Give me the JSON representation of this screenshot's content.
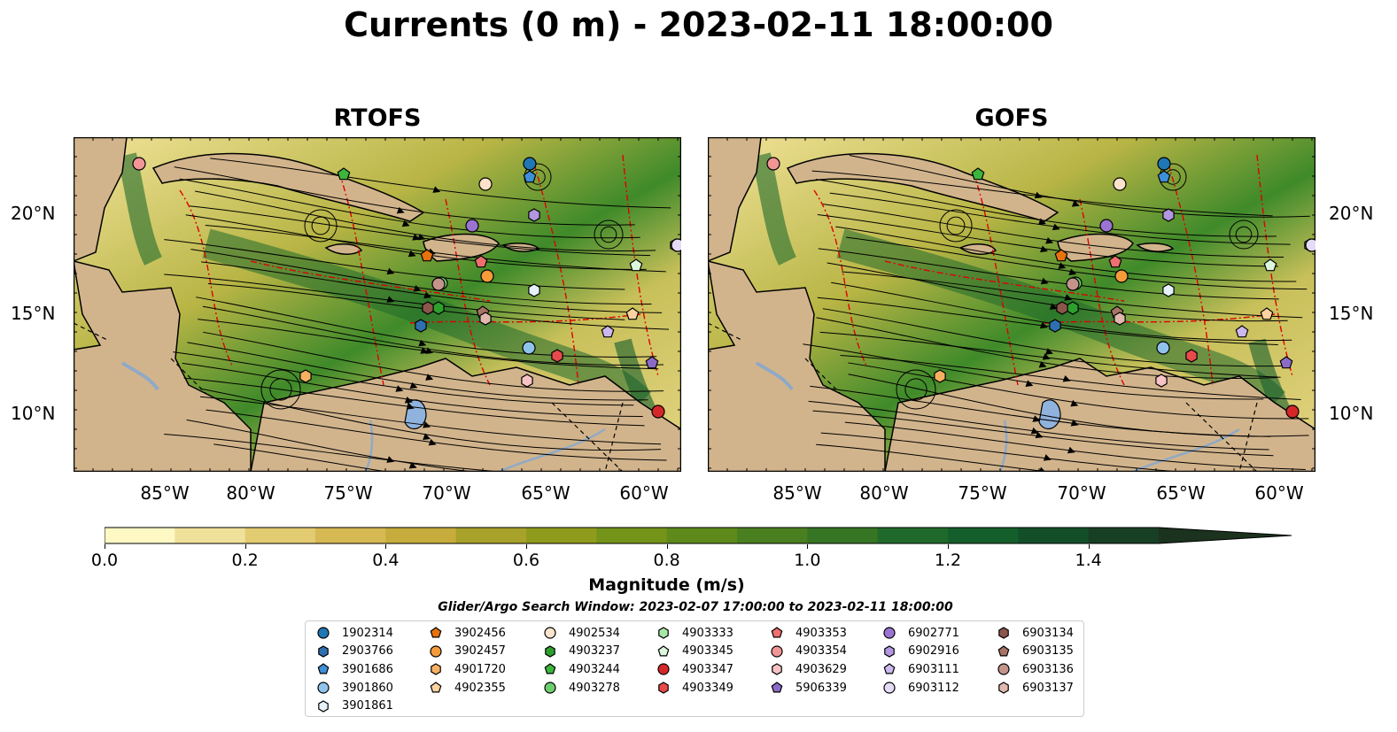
{
  "title": "Currents (0 m) - 2023-02-11 18:00:00",
  "panels": [
    {
      "title": "RTOFS"
    },
    {
      "title": "GOFS"
    }
  ],
  "lat_labels": [
    "20°N",
    "15°N",
    "10°N"
  ],
  "lon_labels": [
    "85°W",
    "80°W",
    "75°W",
    "70°W",
    "65°W",
    "60°W"
  ],
  "colorbar": {
    "title": "Magnitude (m/s)",
    "ticks": [
      "0.0",
      "0.2",
      "0.4",
      "0.6",
      "0.8",
      "1.0",
      "1.2",
      "1.4"
    ],
    "colors": [
      "#fdf8c4",
      "#f0e19a",
      "#e3cb72",
      "#d7b954",
      "#c6ac3c",
      "#a8a12a",
      "#8f9b1c",
      "#739419",
      "#5e8a1c",
      "#4a7f1f",
      "#357523",
      "#1f6a2b",
      "#145e2c",
      "#124f29",
      "#173f24",
      "#1b321e"
    ]
  },
  "search_window": "Glider/Argo Search Window: 2023-02-07 17:00:00 to 2023-02-11 18:00:00",
  "legend": [
    [
      {
        "label": "1902314",
        "shape": "circle",
        "color": "#1f77b4"
      },
      {
        "label": "2903766",
        "shape": "hexagon",
        "color": "#2e6fb0"
      },
      {
        "label": "3901686",
        "shape": "pentagon",
        "color": "#3d8fd8"
      },
      {
        "label": "3901860",
        "shape": "circle",
        "color": "#8fc3ec"
      },
      {
        "label": "3901861",
        "shape": "hexagon",
        "color": "#e6f2fb"
      }
    ],
    [
      {
        "label": "3902456",
        "shape": "pentagon",
        "color": "#e8720c"
      },
      {
        "label": "3902457",
        "shape": "circle",
        "color": "#f59b3a"
      },
      {
        "label": "4901720",
        "shape": "hexagon",
        "color": "#f7b061"
      },
      {
        "label": "4902355",
        "shape": "pentagon",
        "color": "#fbd2a0"
      }
    ],
    [
      {
        "label": "4902534",
        "shape": "circle",
        "color": "#fde3cc"
      },
      {
        "label": "4903237",
        "shape": "hexagon",
        "color": "#2ca02c"
      },
      {
        "label": "4903244",
        "shape": "pentagon",
        "color": "#3cb53c"
      },
      {
        "label": "4903278",
        "shape": "circle",
        "color": "#6ccf6c"
      }
    ],
    [
      {
        "label": "4903333",
        "shape": "hexagon",
        "color": "#a6e8a6"
      },
      {
        "label": "4903345",
        "shape": "pentagon",
        "color": "#dcf8dc"
      },
      {
        "label": "4903347",
        "shape": "circle",
        "color": "#d62728"
      },
      {
        "label": "4903349",
        "shape": "hexagon",
        "color": "#e84a4b"
      }
    ],
    [
      {
        "label": "4903353",
        "shape": "pentagon",
        "color": "#ef6f70"
      },
      {
        "label": "4903354",
        "shape": "circle",
        "color": "#f29596"
      },
      {
        "label": "4903629",
        "shape": "hexagon",
        "color": "#f8c3c4"
      },
      {
        "label": "5906339",
        "shape": "pentagon",
        "color": "#8c6bc8"
      }
    ],
    [
      {
        "label": "6902771",
        "shape": "circle",
        "color": "#9b73d2"
      },
      {
        "label": "6902916",
        "shape": "hexagon",
        "color": "#b296e0"
      },
      {
        "label": "6903111",
        "shape": "pentagon",
        "color": "#cdb8ee"
      },
      {
        "label": "6903112",
        "shape": "circle",
        "color": "#e6dbf7"
      }
    ],
    [
      {
        "label": "6903134",
        "shape": "hexagon",
        "color": "#8c564b"
      },
      {
        "label": "6903135",
        "shape": "pentagon",
        "color": "#a87466"
      },
      {
        "label": "6903136",
        "shape": "circle",
        "color": "#c4948a"
      },
      {
        "label": "6903137",
        "shape": "hexagon",
        "color": "#e0b8ad"
      }
    ]
  ]
}
